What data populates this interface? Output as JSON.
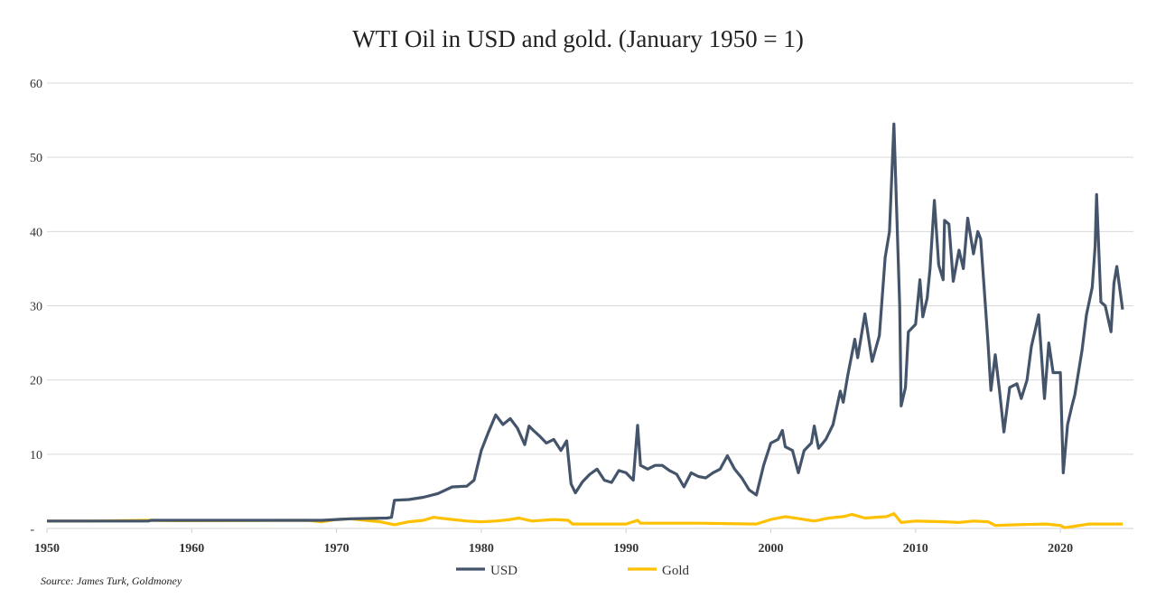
{
  "chart_data": {
    "type": "line",
    "title": "WTI Oil in USD and gold. (January 1950 = 1)",
    "source": "Source: James Turk, Goldmoney",
    "xlim": [
      1950,
      2024.6
    ],
    "ylim": [
      0,
      60
    ],
    "x_ticks": [
      "1950",
      "1960",
      "1970",
      "1980",
      "1990",
      "2000",
      "2010",
      "2020"
    ],
    "y_ticks": [
      {
        "v": 0,
        "label": "-"
      },
      {
        "v": 10,
        "label": "10"
      },
      {
        "v": 20,
        "label": "20"
      },
      {
        "v": 30,
        "label": "30"
      },
      {
        "v": 40,
        "label": "40"
      },
      {
        "v": 50,
        "label": "50"
      },
      {
        "v": 60,
        "label": "60"
      }
    ],
    "grid": "horizontal",
    "legend": "bottom",
    "series": [
      {
        "name": "USD",
        "color": "#44546a",
        "points": [
          [
            1950,
            1
          ],
          [
            1957,
            1
          ],
          [
            1957.2,
            1.1
          ],
          [
            1969,
            1.1
          ],
          [
            1970,
            1.2
          ],
          [
            1971,
            1.3
          ],
          [
            1973.5,
            1.4
          ],
          [
            1973.8,
            1.5
          ],
          [
            1974,
            3.8
          ],
          [
            1975,
            3.9
          ],
          [
            1976,
            4.2
          ],
          [
            1977,
            4.7
          ],
          [
            1978,
            5.6
          ],
          [
            1979,
            5.7
          ],
          [
            1979.5,
            6.5
          ],
          [
            1980,
            10.5
          ],
          [
            1980.5,
            13
          ],
          [
            1981,
            15.3
          ],
          [
            1981.5,
            14
          ],
          [
            1982,
            14.8
          ],
          [
            1982.5,
            13.5
          ],
          [
            1983,
            11.3
          ],
          [
            1983.3,
            13.8
          ],
          [
            1983.6,
            13.2
          ],
          [
            1984,
            12.5
          ],
          [
            1984.5,
            11.5
          ],
          [
            1985,
            12
          ],
          [
            1985.5,
            10.5
          ],
          [
            1985.9,
            11.8
          ],
          [
            1986.2,
            6
          ],
          [
            1986.5,
            4.8
          ],
          [
            1987,
            6.3
          ],
          [
            1987.5,
            7.3
          ],
          [
            1988,
            8
          ],
          [
            1988.5,
            6.5
          ],
          [
            1989,
            6.2
          ],
          [
            1989.5,
            7.8
          ],
          [
            1990,
            7.5
          ],
          [
            1990.5,
            6.5
          ],
          [
            1990.8,
            13.9
          ],
          [
            1991,
            8.5
          ],
          [
            1991.5,
            8
          ],
          [
            1992,
            8.5
          ],
          [
            1992.5,
            8.5
          ],
          [
            1993,
            7.8
          ],
          [
            1993.5,
            7.3
          ],
          [
            1994,
            5.6
          ],
          [
            1994.5,
            7.5
          ],
          [
            1995,
            7
          ],
          [
            1995.5,
            6.8
          ],
          [
            1996,
            7.5
          ],
          [
            1996.5,
            8
          ],
          [
            1997,
            9.8
          ],
          [
            1997.5,
            8
          ],
          [
            1998,
            6.8
          ],
          [
            1998.5,
            5.2
          ],
          [
            1999,
            4.5
          ],
          [
            1999.5,
            8.5
          ],
          [
            2000,
            11.5
          ],
          [
            2000.5,
            12
          ],
          [
            2000.8,
            13.2
          ],
          [
            2001,
            11
          ],
          [
            2001.5,
            10.5
          ],
          [
            2001.9,
            7.5
          ],
          [
            2002.3,
            10.5
          ],
          [
            2002.8,
            11.5
          ],
          [
            2003,
            13.8
          ],
          [
            2003.3,
            10.8
          ],
          [
            2003.8,
            12
          ],
          [
            2004.3,
            14
          ],
          [
            2004.8,
            18.5
          ],
          [
            2005,
            17
          ],
          [
            2005.3,
            20.5
          ],
          [
            2005.8,
            25.5
          ],
          [
            2006,
            23
          ],
          [
            2006.5,
            28.9
          ],
          [
            2007,
            22.5
          ],
          [
            2007.5,
            26
          ],
          [
            2007.9,
            36.5
          ],
          [
            2008.2,
            40
          ],
          [
            2008.5,
            54.5
          ],
          [
            2008.9,
            30
          ],
          [
            2009,
            16.5
          ],
          [
            2009.3,
            19
          ],
          [
            2009.5,
            26.5
          ],
          [
            2010,
            27.5
          ],
          [
            2010.3,
            33.5
          ],
          [
            2010.5,
            28.5
          ],
          [
            2010.8,
            31
          ],
          [
            2011,
            35
          ],
          [
            2011.3,
            44.2
          ],
          [
            2011.6,
            35.5
          ],
          [
            2011.9,
            33.5
          ],
          [
            2012,
            41.5
          ],
          [
            2012.3,
            41
          ],
          [
            2012.6,
            33.3
          ],
          [
            2013,
            37.5
          ],
          [
            2013.3,
            35
          ],
          [
            2013.6,
            41.8
          ],
          [
            2014,
            37
          ],
          [
            2014.3,
            40
          ],
          [
            2014.5,
            39
          ],
          [
            2015,
            25
          ],
          [
            2015.2,
            18.6
          ],
          [
            2015.5,
            23.4
          ],
          [
            2015.8,
            18.5
          ],
          [
            2016.1,
            13
          ],
          [
            2016.5,
            19
          ],
          [
            2017,
            19.5
          ],
          [
            2017.3,
            17.5
          ],
          [
            2017.7,
            20
          ],
          [
            2018,
            24.5
          ],
          [
            2018.5,
            28.8
          ],
          [
            2018.9,
            17.5
          ],
          [
            2019.2,
            25
          ],
          [
            2019.5,
            21
          ],
          [
            2020,
            21
          ],
          [
            2020.2,
            7.5
          ],
          [
            2020.5,
            14
          ],
          [
            2020.8,
            16.5
          ],
          [
            2021,
            18
          ],
          [
            2021.5,
            24
          ],
          [
            2021.8,
            28.8
          ],
          [
            2022.2,
            32.5
          ],
          [
            2022.4,
            38
          ],
          [
            2022.5,
            45
          ],
          [
            2022.8,
            30.5
          ],
          [
            2023.1,
            30
          ],
          [
            2023.5,
            26.5
          ],
          [
            2023.7,
            33
          ],
          [
            2023.9,
            35.3
          ],
          [
            2024.3,
            29.5
          ]
        ]
      },
      {
        "name": "Gold",
        "color": "#ffc000",
        "points": [
          [
            1950,
            1
          ],
          [
            1953,
            1
          ],
          [
            1957,
            1.1
          ],
          [
            1959,
            1.05
          ],
          [
            1968,
            1.1
          ],
          [
            1969,
            0.9
          ],
          [
            1970,
            1.2
          ],
          [
            1971,
            1.3
          ],
          [
            1972,
            1.1
          ],
          [
            1973,
            0.9
          ],
          [
            1974,
            0.5
          ],
          [
            1975,
            0.9
          ],
          [
            1976,
            1.1
          ],
          [
            1976.7,
            1.5
          ],
          [
            1978,
            1.2
          ],
          [
            1979,
            1.0
          ],
          [
            1980,
            0.9
          ],
          [
            1981,
            1.0
          ],
          [
            1982,
            1.2
          ],
          [
            1982.6,
            1.4
          ],
          [
            1983.5,
            1.0
          ],
          [
            1985,
            1.2
          ],
          [
            1986,
            1.1
          ],
          [
            1986.3,
            0.6
          ],
          [
            1990,
            0.6
          ],
          [
            1990.8,
            1.1
          ],
          [
            1991,
            0.7
          ],
          [
            1995,
            0.7
          ],
          [
            1999,
            0.6
          ],
          [
            2000,
            1.2
          ],
          [
            2001,
            1.6
          ],
          [
            2002,
            1.3
          ],
          [
            2003,
            1.0
          ],
          [
            2004,
            1.4
          ],
          [
            2005,
            1.6
          ],
          [
            2005.6,
            1.9
          ],
          [
            2006.5,
            1.4
          ],
          [
            2008,
            1.6
          ],
          [
            2008.5,
            2.0
          ],
          [
            2009,
            0.8
          ],
          [
            2010,
            1.0
          ],
          [
            2012,
            0.9
          ],
          [
            2013,
            0.8
          ],
          [
            2014,
            1.0
          ],
          [
            2015,
            0.9
          ],
          [
            2015.5,
            0.4
          ],
          [
            2017,
            0.5
          ],
          [
            2019,
            0.6
          ],
          [
            2020,
            0.4
          ],
          [
            2020.3,
            0.1
          ],
          [
            2021,
            0.3
          ],
          [
            2022,
            0.6
          ],
          [
            2024.3,
            0.6
          ]
        ]
      }
    ]
  }
}
